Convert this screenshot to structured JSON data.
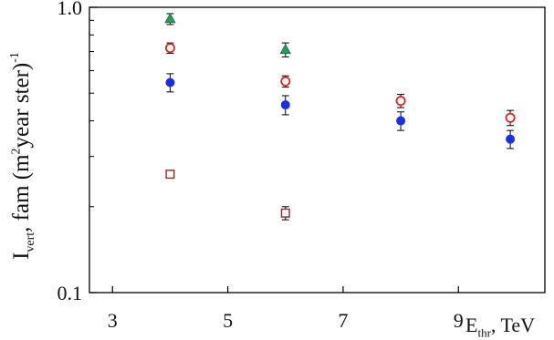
{
  "chart_data": {
    "type": "scatter",
    "ylabel": {
      "symbol": "I",
      "sub": "vert",
      "text_before": ", fam (m",
      "sup": "2",
      "text_after": "year ster)",
      "exp": "-1"
    },
    "xlabel": {
      "symbol": "E",
      "sub": "thr",
      "unit": ", TeV"
    },
    "xlim": [
      2.6,
      10.5
    ],
    "ylim": [
      0.1,
      1.0
    ],
    "yscale": "log",
    "x_ticks": [
      3,
      5,
      7,
      9
    ],
    "x_tick_labels": [
      "3",
      "5",
      "7",
      "9"
    ],
    "y_tick_labels": [
      {
        "value": 1.0,
        "label": "1.0"
      },
      {
        "value": 0.1,
        "label": "0.1"
      }
    ],
    "y_minor_ticks": [
      0.2,
      0.3,
      0.4,
      0.5,
      0.6,
      0.7,
      0.8,
      0.9
    ],
    "grid": false,
    "series": [
      {
        "marker": "triangle",
        "color": "#2a9a5a",
        "edge": "#1d6b3f",
        "points": [
          {
            "x": 4,
            "y": 0.91,
            "err": 0.04
          },
          {
            "x": 6,
            "y": 0.71,
            "err": 0.04
          }
        ]
      },
      {
        "marker": "open-circle",
        "color": "#d42a2a",
        "points": [
          {
            "x": 4,
            "y": 0.72,
            "err": 0.03
          },
          {
            "x": 6,
            "y": 0.55,
            "err": 0.025
          },
          {
            "x": 8,
            "y": 0.47,
            "err": 0.025
          },
          {
            "x": 9.9,
            "y": 0.41,
            "err": 0.025
          }
        ]
      },
      {
        "marker": "filled-circle",
        "color": "#1a2fe0",
        "points": [
          {
            "x": 4,
            "y": 0.545,
            "err": 0.04
          },
          {
            "x": 6,
            "y": 0.455,
            "err": 0.035
          },
          {
            "x": 8,
            "y": 0.4,
            "err": 0.03
          },
          {
            "x": 9.9,
            "y": 0.345,
            "err": 0.025
          }
        ]
      },
      {
        "marker": "open-square",
        "color": "#8b3a3a",
        "points": [
          {
            "x": 4,
            "y": 0.26,
            "err": 0.006
          },
          {
            "x": 6,
            "y": 0.19,
            "err": 0.01
          }
        ]
      }
    ]
  }
}
